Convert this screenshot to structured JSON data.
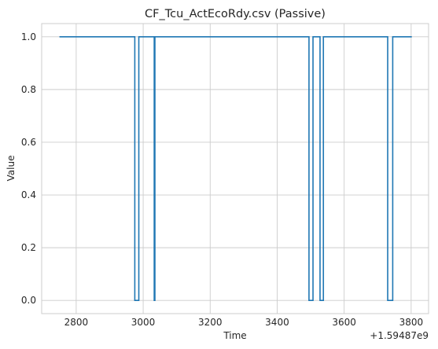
{
  "chart_data": {
    "type": "line",
    "title": "CF_Tcu_ActEcoRdy.csv (Passive)",
    "xlabel": "Time",
    "ylabel": "Value",
    "offset_label": "+1.59487e9",
    "xlim": [
      2697,
      3852
    ],
    "ylim": [
      -0.05,
      1.05
    ],
    "xticks": [
      2800,
      3000,
      3200,
      3400,
      3600,
      3800
    ],
    "yticks": [
      0.0,
      0.2,
      0.4,
      0.6,
      0.8,
      1.0
    ],
    "xtick_labels": [
      "2800",
      "3000",
      "3200",
      "3400",
      "3600",
      "3800"
    ],
    "ytick_labels": [
      "0.0",
      "0.2",
      "0.4",
      "0.6",
      "0.8",
      "1.0"
    ],
    "grid": true,
    "series": [
      {
        "color": "#1f77b4",
        "x": [
          2750,
          2975,
          2975,
          2987,
          2987,
          3033,
          3033,
          3035,
          3035,
          3495,
          3495,
          3507,
          3507,
          3528,
          3528,
          3538,
          3538,
          3730,
          3730,
          3745,
          3745,
          3802
        ],
        "y": [
          1,
          1,
          0,
          0,
          1,
          1,
          0,
          0,
          1,
          1,
          0,
          0,
          1,
          1,
          0,
          0,
          1,
          1,
          0,
          0,
          1,
          1
        ]
      }
    ]
  }
}
